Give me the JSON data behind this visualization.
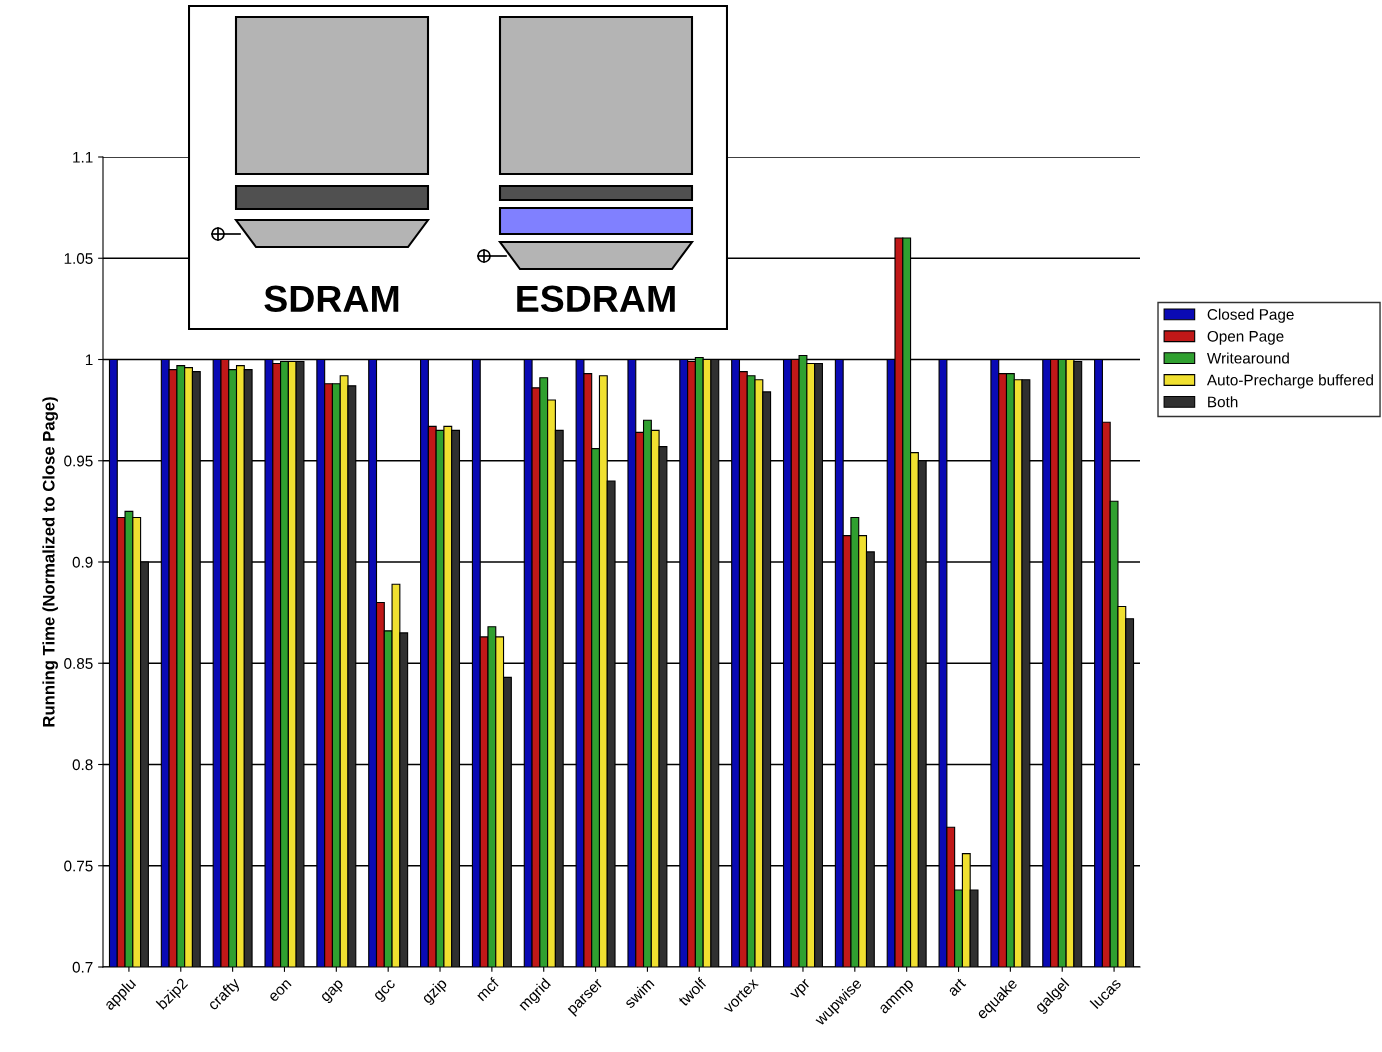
{
  "chart_data": {
    "type": "bar",
    "ylabel": "Running Time (Normalized to Close Page)",
    "categories": [
      "applu",
      "bzip2",
      "crafty",
      "eon",
      "gap",
      "gcc",
      "gzip",
      "mcf",
      "mgrid",
      "parser",
      "swim",
      "twolf",
      "vortex",
      "vpr",
      "wupwise",
      "ammp",
      "art",
      "equake",
      "galgel",
      "lucas"
    ],
    "series": [
      {
        "name": "Closed Page",
        "color": "#0a0ab4",
        "values": [
          1.0,
          1.0,
          1.0,
          1.0,
          1.0,
          1.0,
          1.0,
          1.0,
          1.0,
          1.0,
          1.0,
          1.0,
          1.0,
          1.0,
          1.0,
          1.0,
          1.0,
          1.0,
          1.0,
          1.0
        ]
      },
      {
        "name": "Open Page",
        "color": "#c01818",
        "values": [
          0.922,
          0.995,
          1.0,
          0.998,
          0.988,
          0.88,
          0.967,
          0.863,
          0.986,
          0.993,
          0.964,
          0.999,
          0.994,
          1.0,
          0.913,
          1.06,
          0.769,
          0.993,
          1.0,
          0.969
        ]
      },
      {
        "name": "Writearound",
        "color": "#30a030",
        "values": [
          0.925,
          0.997,
          0.995,
          0.999,
          0.988,
          0.866,
          0.965,
          0.868,
          0.991,
          0.956,
          0.97,
          1.001,
          0.992,
          1.002,
          0.922,
          1.06,
          0.738,
          0.993,
          1.0,
          0.93
        ]
      },
      {
        "name": "Auto-Precharge buffered",
        "color": "#f0e030",
        "values": [
          0.922,
          0.996,
          0.997,
          0.999,
          0.992,
          0.889,
          0.967,
          0.863,
          0.98,
          0.992,
          0.965,
          1.0,
          0.99,
          0.998,
          0.913,
          0.954,
          0.756,
          0.99,
          1.0,
          0.878
        ]
      },
      {
        "name": "Both",
        "color": "#303030",
        "values": [
          0.9,
          0.994,
          0.995,
          0.999,
          0.987,
          0.865,
          0.965,
          0.843,
          0.965,
          0.94,
          0.957,
          1.0,
          0.984,
          0.998,
          0.905,
          0.95,
          0.738,
          0.99,
          0.999,
          0.872
        ]
      }
    ],
    "ylim": [
      0.7,
      1.1
    ],
    "yticks": [
      0.7,
      0.75,
      0.8,
      0.85,
      0.9,
      0.95,
      1,
      1.05,
      1.1
    ],
    "grid": "y",
    "legend": "right",
    "annotations": [
      "SDRAM",
      "ESDRAM"
    ]
  }
}
